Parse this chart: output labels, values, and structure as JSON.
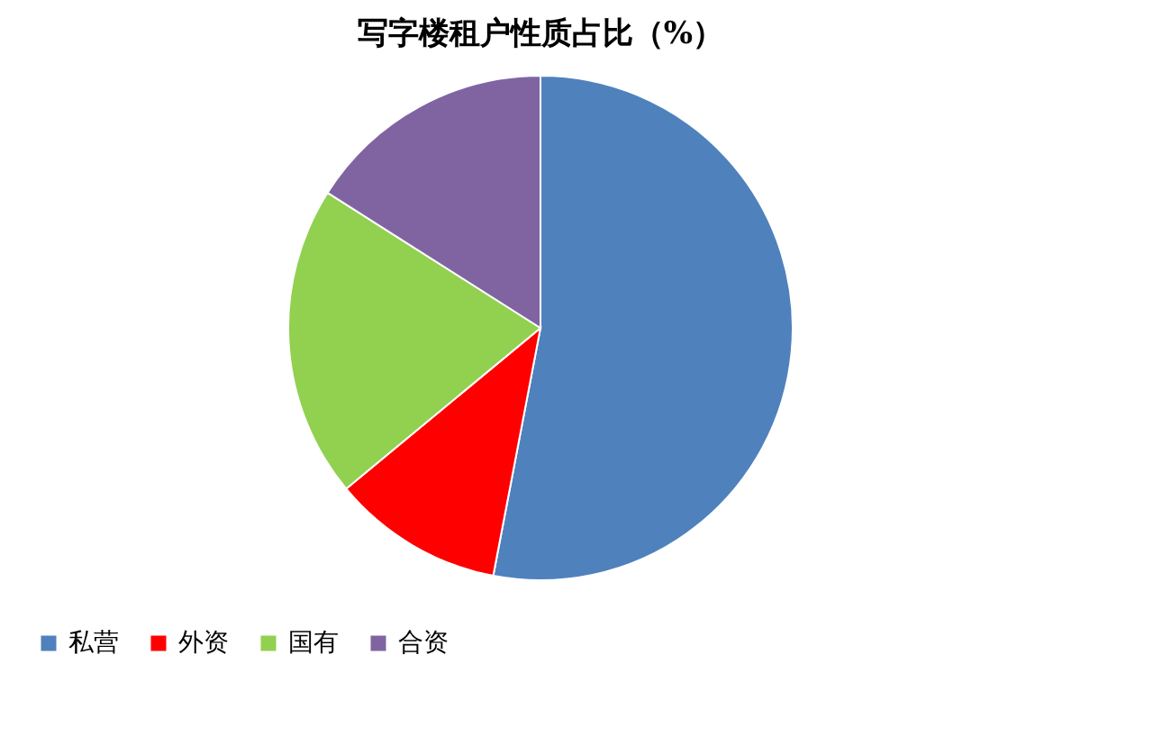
{
  "chart_data": {
    "type": "pie",
    "title": "写字楼租户性质占比（%）",
    "categories": [
      "私营",
      "外资",
      "国有",
      "合资"
    ],
    "values": [
      53,
      11,
      20,
      16
    ],
    "colors": [
      "#4f81bd",
      "#ff0000",
      "#92d050",
      "#8064a2"
    ],
    "legend": "bottom"
  }
}
